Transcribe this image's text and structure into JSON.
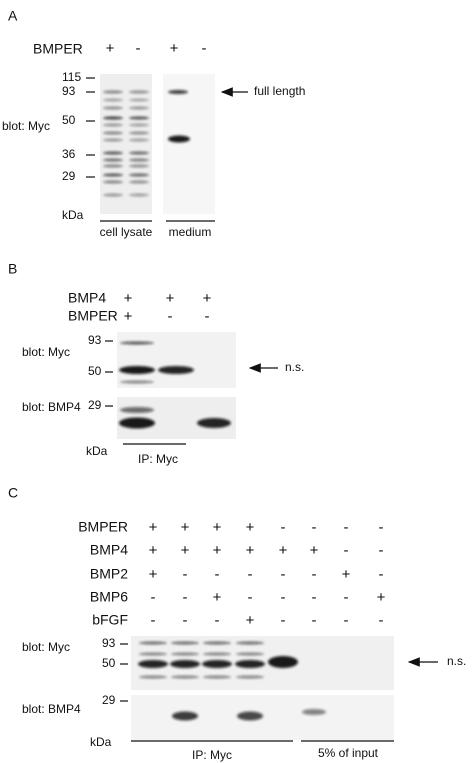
{
  "panel_a": {
    "label": "A",
    "row_label": "BMPER",
    "signs": [
      "+",
      "-",
      "+",
      "-"
    ],
    "mw_markers": [
      115,
      93,
      50,
      36,
      29
    ],
    "kda": "kDa",
    "blot_label": "blot: Myc",
    "annotation": "full length",
    "groups": [
      "cell lysate",
      "medium"
    ]
  },
  "panel_b": {
    "label": "B",
    "rows": [
      {
        "name": "BMP4",
        "signs": [
          "+",
          "+",
          "+"
        ]
      },
      {
        "name": "BMPER",
        "signs": [
          "+",
          "-",
          "-"
        ]
      }
    ],
    "blots": [
      {
        "label": "blot: Myc",
        "mw_markers": [
          93,
          50
        ]
      },
      {
        "label": "blot: BMP4",
        "mw_markers": [
          29
        ]
      }
    ],
    "annotation": "n.s.",
    "kda": "kDa",
    "group": "IP: Myc"
  },
  "panel_c": {
    "label": "C",
    "rows": [
      {
        "name": "BMPER",
        "signs": [
          "+",
          "+",
          "+",
          "+",
          "-",
          "-",
          "-",
          "-"
        ]
      },
      {
        "name": "BMP4",
        "signs": [
          "+",
          "+",
          "+",
          "+",
          "+",
          "+",
          "-",
          "-"
        ]
      },
      {
        "name": "BMP2",
        "signs": [
          "+",
          "-",
          "-",
          "-",
          "-",
          "-",
          "+",
          "-"
        ]
      },
      {
        "name": "BMP6",
        "signs": [
          "-",
          "-",
          "+",
          "-",
          "-",
          "-",
          "-",
          "+"
        ]
      },
      {
        "name": "bFGF",
        "signs": [
          "-",
          "-",
          "-",
          "+",
          "-",
          "-",
          "-",
          "-"
        ]
      }
    ],
    "blots": [
      {
        "label": "blot: Myc",
        "mw_markers": [
          93,
          50
        ]
      },
      {
        "label": "blot: BMP4",
        "mw_markers": [
          29
        ]
      }
    ],
    "annotation": "n.s.",
    "kda": "kDa",
    "groups": [
      "IP: Myc",
      "5% of input"
    ]
  }
}
